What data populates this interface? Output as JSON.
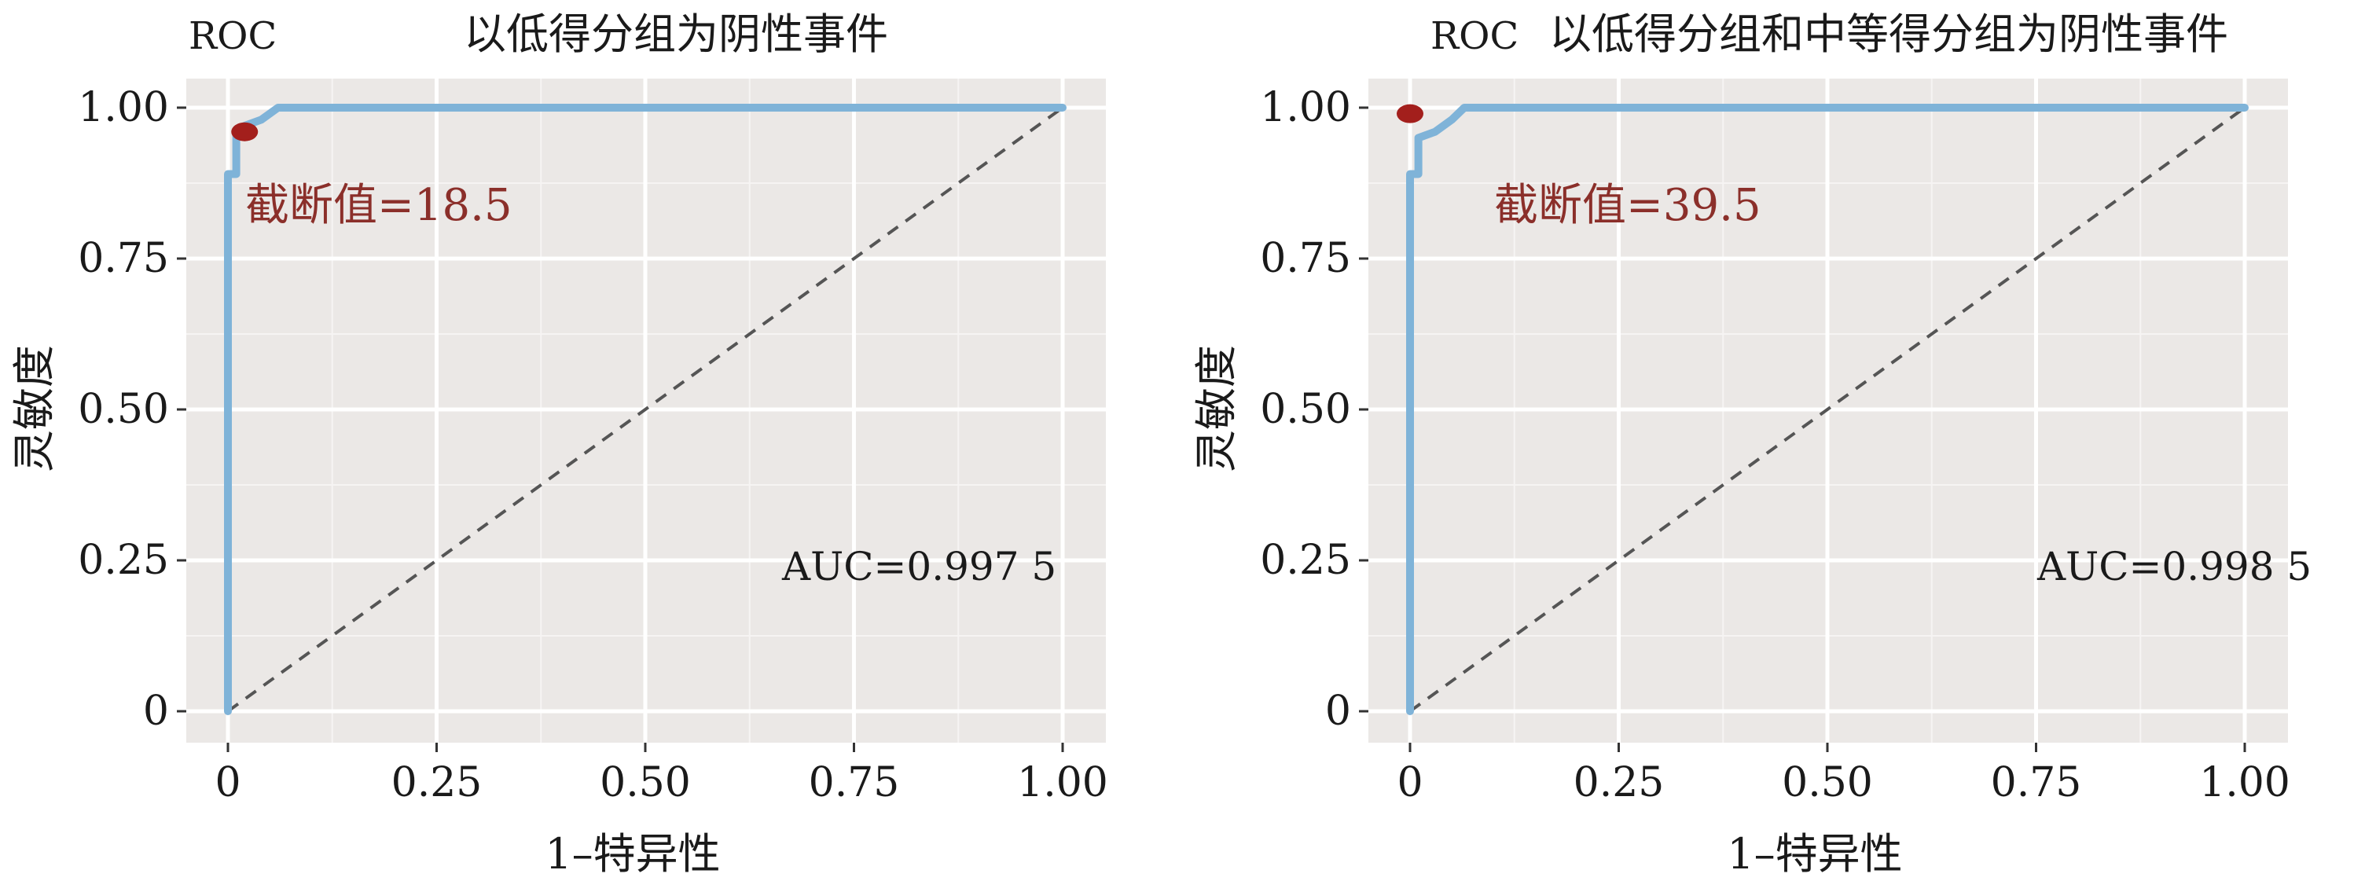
{
  "colors": {
    "panel_bg": "#ebe8e6",
    "grid_major": "#ffffff",
    "grid_minor": "#f6f4f3",
    "roc_line": "#7fb3d8",
    "diagonal": "#555555",
    "cutoff_marker": "#a31f1c",
    "cutoff_text": "#8b2f2a",
    "text": "#1a1a1a"
  },
  "chart_data": [
    {
      "type": "line",
      "title_prefix": "ROC",
      "title": "以低得分组为阴性事件",
      "xlabel": "1–特异性",
      "ylabel": "灵敏度",
      "xlim": [
        0,
        1
      ],
      "ylim": [
        0,
        1
      ],
      "x_ticks": [
        "0",
        "0.25",
        "0.50",
        "0.75",
        "1.00"
      ],
      "y_ticks": [
        "0",
        "0.25",
        "0.50",
        "0.75",
        "1.00"
      ],
      "grid": true,
      "series": [
        {
          "x": [
            0,
            0,
            0.01,
            0.01,
            0.02,
            0.04,
            0.06,
            1.0
          ],
          "y": [
            0,
            0.89,
            0.89,
            0.96,
            0.97,
            0.98,
            1.0,
            1.0
          ]
        }
      ],
      "reference_line": {
        "x": [
          0,
          1
        ],
        "y": [
          0,
          1
        ],
        "style": "dashed"
      },
      "cutoff_point": {
        "x": 0.02,
        "y": 0.96
      },
      "cutoff_label": "截断值=18.5",
      "auc_label": "AUC=0.997 5"
    },
    {
      "type": "line",
      "title_prefix": "ROC",
      "title": "以低得分组和中等得分组为阴性事件",
      "xlabel": "1–特异性",
      "ylabel": "灵敏度",
      "xlim": [
        0,
        1
      ],
      "ylim": [
        0,
        1
      ],
      "x_ticks": [
        "0",
        "0.25",
        "0.50",
        "0.75",
        "1.00"
      ],
      "y_ticks": [
        "0",
        "0.25",
        "0.50",
        "0.75",
        "1.00"
      ],
      "grid": true,
      "series": [
        {
          "x": [
            0,
            0,
            0.01,
            0.01,
            0.03,
            0.05,
            0.065,
            1.0
          ],
          "y": [
            0,
            0.89,
            0.89,
            0.95,
            0.96,
            0.98,
            1.0,
            1.0
          ]
        }
      ],
      "reference_line": {
        "x": [
          0,
          1
        ],
        "y": [
          0,
          1
        ],
        "style": "dashed"
      },
      "cutoff_point": {
        "x": 0.0,
        "y": 0.99
      },
      "cutoff_label": "截断值=39.5",
      "auc_label": "AUC=0.998 5"
    }
  ]
}
